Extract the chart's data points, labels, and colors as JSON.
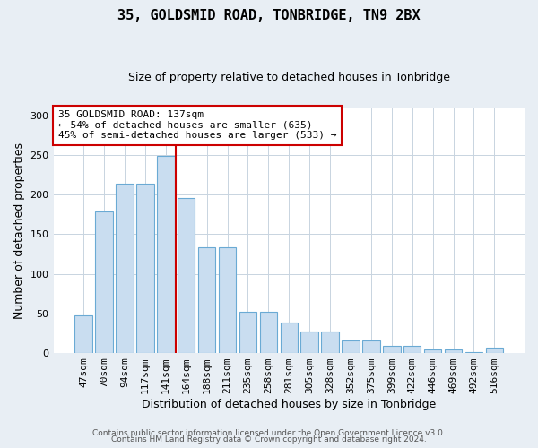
{
  "title": "35, GOLDSMID ROAD, TONBRIDGE, TN9 2BX",
  "subtitle": "Size of property relative to detached houses in Tonbridge",
  "xlabel": "Distribution of detached houses by size in Tonbridge",
  "ylabel": "Number of detached properties",
  "categories": [
    "47sqm",
    "70sqm",
    "94sqm",
    "117sqm",
    "141sqm",
    "164sqm",
    "188sqm",
    "211sqm",
    "235sqm",
    "258sqm",
    "281sqm",
    "305sqm",
    "328sqm",
    "352sqm",
    "375sqm",
    "399sqm",
    "422sqm",
    "446sqm",
    "469sqm",
    "492sqm",
    "516sqm"
  ],
  "bar_heights": [
    47,
    179,
    214,
    214,
    249,
    196,
    134,
    134,
    52,
    52,
    38,
    27,
    27,
    15,
    15,
    9,
    9,
    4,
    4,
    1,
    6
  ],
  "bar_color": "#c9ddf0",
  "bar_edgecolor": "#6aaad4",
  "vline_index": 4.5,
  "vline_color": "#cc0000",
  "annotation_text": "35 GOLDSMID ROAD: 137sqm\n← 54% of detached houses are smaller (635)\n45% of semi-detached houses are larger (533) →",
  "annotation_box_facecolor": "#ffffff",
  "annotation_box_edgecolor": "#cc0000",
  "yticks": [
    0,
    50,
    100,
    150,
    200,
    250,
    300
  ],
  "ylim": [
    0,
    310
  ],
  "footer1": "Contains HM Land Registry data © Crown copyright and database right 2024.",
  "footer2": "Contains public sector information licensed under the Open Government Licence v3.0.",
  "bg_color": "#e8eef4",
  "plot_bg_color": "#ffffff",
  "title_fontsize": 11,
  "subtitle_fontsize": 9,
  "tick_fontsize": 8,
  "ylabel_fontsize": 9,
  "xlabel_fontsize": 9,
  "annotation_fontsize": 8,
  "footer_fontsize": 6.5,
  "grid_color": "#c8d4e0"
}
